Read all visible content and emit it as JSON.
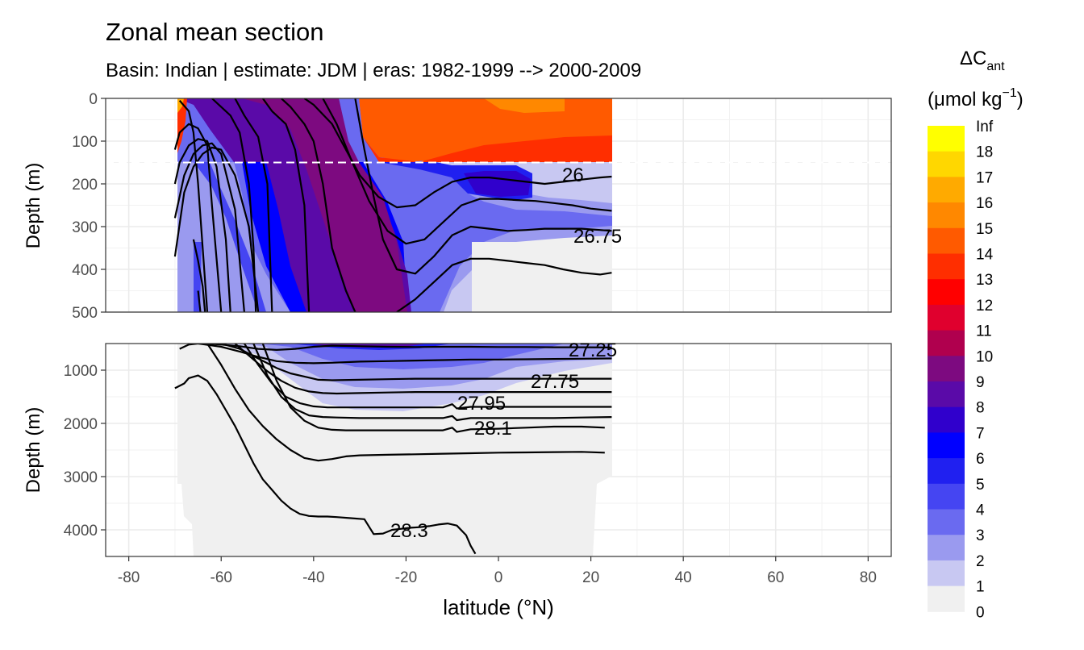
{
  "chart_data": {
    "type": "heatmap",
    "title": "Zonal mean section",
    "subtitle": "Basin: Indian | estimate: JDM  | eras: 1982-1999 --> 2000-2009",
    "xlabel": "latitude (°N)",
    "ylabel": "Depth (m)",
    "xlim": [
      -85,
      85
    ],
    "x_ticks": [
      "-80",
      "-60",
      "-40",
      "-20",
      "0",
      "20",
      "40",
      "60",
      "80"
    ],
    "data_lat_range": [
      -70,
      24.5
    ],
    "panels": [
      {
        "ylim": [
          500,
          0
        ],
        "y_ticks": [
          "0",
          "100",
          "200",
          "300",
          "400",
          "500"
        ],
        "reference_depth_dashed": 150
      },
      {
        "ylim": [
          4500,
          500
        ],
        "y_ticks": [
          "1000",
          "2000",
          "3000",
          "4000"
        ]
      }
    ],
    "legend": {
      "title": "ΔC",
      "title_sub": "ant",
      "unit": "(μmol kg",
      "unit_sup": "−1",
      "unit_close": ")",
      "position": "right",
      "levels": [
        "Inf",
        "18",
        "17",
        "16",
        "15",
        "14",
        "13",
        "12",
        "11",
        "10",
        "9",
        "8",
        "7",
        "6",
        "5",
        "4",
        "3",
        "2",
        "1",
        "0"
      ],
      "colors": [
        "#ffff00",
        "#ffd700",
        "#ffaa00",
        "#ff8800",
        "#ff5a00",
        "#ff2e00",
        "#ff0000",
        "#e0002e",
        "#b0004e",
        "#7d0a80",
        "#5a0aa8",
        "#3000cc",
        "#0000ff",
        "#2020f0",
        "#4545f2",
        "#6a6af0",
        "#9a9aef",
        "#c8c8f2",
        "#f0f0f0"
      ]
    },
    "isopycnal_labels": [
      "26",
      "26.75",
      "27.25",
      "27.75",
      "27.95",
      "28.1",
      "28.3"
    ],
    "isopycnals_upper": [
      {
        "lat": [
          -70,
          -68,
          -66,
          -64,
          -62,
          -60,
          -57,
          -54,
          -52
        ],
        "depth": [
          370,
          220,
          160,
          130,
          115,
          120,
          180,
          300,
          500
        ]
      },
      {
        "lat": [
          -70,
          -68,
          -66,
          -64,
          -62,
          -60,
          -57,
          -55
        ],
        "depth": [
          280,
          180,
          130,
          110,
          105,
          130,
          260,
          500
        ]
      },
      {
        "lat": [
          -70,
          -69,
          -67,
          -65,
          -63,
          -61,
          -59,
          -58
        ],
        "depth": [
          200,
          150,
          110,
          95,
          100,
          160,
          330,
          500
        ]
      },
      {
        "lat": [
          -70,
          -69,
          -67,
          -65,
          -63,
          -62,
          -60
        ],
        "depth": [
          120,
          80,
          60,
          70,
          110,
          250,
          500
        ]
      },
      {
        "lat": [
          -69,
          -67,
          -66,
          -65,
          -64,
          -63
        ],
        "depth": [
          5,
          30,
          80,
          200,
          350,
          500
        ]
      },
      {
        "lat": [
          -66,
          -65,
          -64,
          -63.5
        ],
        "depth": [
          330,
          380,
          440,
          500
        ]
      },
      {
        "lat": [
          -65,
          -64.5
        ],
        "depth": [
          450,
          500
        ]
      },
      {
        "lat": [
          -62,
          -60,
          -58,
          -56,
          -54,
          -53,
          -52.5
        ],
        "depth": [
          0,
          20,
          40,
          80,
          200,
          350,
          500
        ]
      },
      {
        "lat": [
          -57,
          -55,
          -52,
          -50,
          -49
        ],
        "depth": [
          0,
          40,
          90,
          200,
          500
        ]
      },
      {
        "lat": [
          -51,
          -49,
          -46,
          -44,
          -42,
          -41
        ],
        "depth": [
          0,
          30,
          60,
          120,
          250,
          500
        ]
      },
      {
        "lat": [
          -47,
          -45,
          -42,
          -40,
          -38,
          -36,
          -33,
          -31
        ],
        "depth": [
          0,
          20,
          60,
          100,
          200,
          350,
          450,
          500
        ]
      },
      {
        "lat": [
          -42,
          -40,
          -36,
          -33,
          -30,
          -26,
          -22,
          -18,
          -14,
          -10,
          -6,
          -2,
          2,
          6,
          10,
          14,
          18,
          22,
          24.5
        ],
        "depth": [
          0,
          15,
          60,
          120,
          180,
          230,
          255,
          250,
          220,
          195,
          185,
          185,
          190,
          195,
          200,
          195,
          190,
          185,
          183
        ]
      },
      {
        "lat": [
          -38,
          -35,
          -32,
          -28,
          -24,
          -20,
          -16,
          -12,
          -8,
          -4,
          0,
          4,
          8,
          12,
          16,
          20,
          24.5
        ],
        "depth": [
          0,
          60,
          140,
          240,
          310,
          340,
          330,
          290,
          250,
          235,
          235,
          238,
          240,
          245,
          250,
          258,
          263
        ]
      },
      {
        "lat": [
          -31,
          -29,
          -27,
          -25,
          -22,
          -18,
          -14,
          -10,
          -6,
          -2,
          2,
          6,
          10,
          14,
          18,
          22,
          24.5
        ],
        "depth": [
          0,
          120,
          230,
          330,
          400,
          410,
          370,
          320,
          300,
          305,
          310,
          308,
          305,
          305,
          305,
          308,
          310
        ]
      },
      {
        "lat": [
          -22,
          -18,
          -14,
          -10,
          -6,
          -2,
          2,
          6,
          10,
          14,
          18,
          22,
          24.5
        ],
        "depth": [
          500,
          470,
          430,
          390,
          375,
          375,
          380,
          385,
          390,
          400,
          408,
          412,
          408
        ]
      }
    ],
    "isopycnals_lower": [
      {
        "lat": [
          -69,
          -67,
          -65,
          -63,
          -60,
          -56,
          -52,
          -48,
          -44,
          -40,
          -36,
          -30,
          -24,
          -18,
          -12,
          -6,
          0,
          6,
          12,
          18,
          24.5
        ],
        "depth": [
          600,
          520,
          500,
          500,
          520,
          550,
          600,
          620,
          600,
          560,
          540,
          550,
          560,
          565,
          560,
          560,
          565,
          565,
          570,
          570,
          575
        ]
      },
      {
        "lat": [
          -65,
          -60,
          -56,
          -52,
          -48,
          -44,
          -40,
          -36,
          -30,
          -24,
          -18,
          -12,
          -6,
          0,
          6,
          12,
          18,
          24.5
        ],
        "depth": [
          500,
          560,
          650,
          750,
          830,
          860,
          870,
          860,
          840,
          830,
          820,
          810,
          800,
          800,
          795,
          790,
          785,
          780
        ]
      },
      {
        "lat": [
          -60,
          -56,
          -52,
          -48,
          -45,
          -42,
          -39,
          -36,
          -30,
          -24,
          -18,
          -12,
          -6,
          0,
          6,
          12,
          18,
          24.5
        ],
        "depth": [
          500,
          600,
          780,
          960,
          1060,
          1120,
          1180,
          1190,
          1180,
          1170,
          1160,
          1160,
          1160,
          1160,
          1160,
          1160,
          1160,
          1160
        ]
      },
      {
        "lat": [
          -57,
          -53,
          -50,
          -47,
          -44,
          -41,
          -38,
          -35,
          -30,
          -24,
          -18,
          -12,
          -6,
          0,
          6,
          12,
          18,
          24.5
        ],
        "depth": [
          500,
          800,
          1020,
          1200,
          1330,
          1400,
          1430,
          1440,
          1430,
          1420,
          1410,
          1410,
          1410,
          1410,
          1410,
          1410,
          1410,
          1410
        ]
      },
      {
        "lat": [
          -55,
          -52,
          -49,
          -46,
          -43,
          -40,
          -37,
          -34,
          -30,
          -24,
          -18,
          -12,
          -10,
          -9,
          -6,
          0,
          6,
          12,
          18,
          24.5
        ],
        "depth": [
          500,
          900,
          1250,
          1500,
          1620,
          1680,
          1700,
          1700,
          1700,
          1700,
          1700,
          1700,
          1640,
          1720,
          1690,
          1690,
          1690,
          1690,
          1690,
          1690
        ]
      },
      {
        "lat": [
          -53,
          -50,
          -47,
          -44,
          -41,
          -38,
          -35,
          -30,
          -24,
          -18,
          -12,
          -10,
          -9,
          -6,
          0,
          6,
          12,
          18,
          24.5
        ],
        "depth": [
          500,
          1100,
          1500,
          1730,
          1850,
          1880,
          1890,
          1900,
          1900,
          1900,
          1900,
          1860,
          1940,
          1900,
          1900,
          1900,
          1900,
          1890,
          1880
        ]
      },
      {
        "lat": [
          -51,
          -48,
          -45,
          -42,
          -39,
          -36,
          -33,
          -30,
          -24,
          -18,
          -12,
          -10,
          -9,
          -6,
          0,
          6,
          12,
          18,
          23
        ],
        "depth": [
          500,
          1200,
          1700,
          1950,
          2080,
          2120,
          2130,
          2130,
          2130,
          2130,
          2130,
          2080,
          2160,
          2110,
          2100,
          2080,
          2060,
          2060,
          2080
        ]
      },
      {
        "lat": [
          -63,
          -60,
          -57,
          -54,
          -51,
          -48,
          -45,
          -42,
          -39,
          -36,
          -33,
          -30,
          -24,
          -18,
          -12,
          -6,
          0,
          6,
          12,
          18,
          23
        ],
        "depth": [
          500,
          900,
          1350,
          1750,
          2050,
          2300,
          2500,
          2650,
          2700,
          2670,
          2620,
          2600,
          2590,
          2580,
          2570,
          2560,
          2550,
          2545,
          2540,
          2535,
          2550
        ]
      },
      {
        "lat": [
          -70,
          -68,
          -67,
          -65,
          -63,
          -61,
          -59,
          -57,
          -55,
          -53,
          -51,
          -49,
          -47,
          -45,
          -43,
          -41,
          -39,
          -37,
          -35,
          -32,
          -29,
          -27,
          -25,
          -23,
          -21,
          -19,
          -17,
          -15,
          -13,
          -11,
          -9,
          -7,
          -6,
          -5
        ],
        "depth": [
          1340,
          1250,
          1150,
          1100,
          1200,
          1450,
          1750,
          2050,
          2400,
          2750,
          3050,
          3250,
          3450,
          3600,
          3700,
          3740,
          3750,
          3750,
          3760,
          3780,
          3800,
          4080,
          4070,
          4000,
          3980,
          3960,
          3950,
          3930,
          3900,
          3880,
          3920,
          4100,
          4300,
          4450
        ]
      }
    ]
  }
}
